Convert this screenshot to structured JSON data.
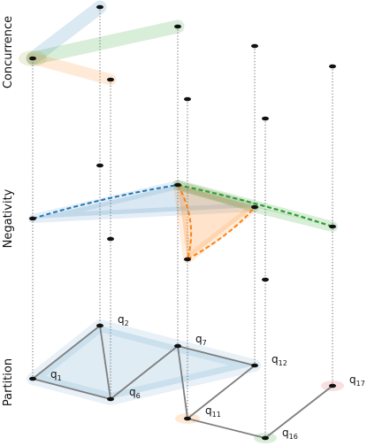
{
  "layers": {
    "concurrence": "Concurrence",
    "negativity": "Negativity",
    "partition": "Partition"
  },
  "qubits": [
    {
      "id": "q1",
      "base": "q",
      "sub": "1"
    },
    {
      "id": "q2",
      "base": "q",
      "sub": "2"
    },
    {
      "id": "q6",
      "base": "q",
      "sub": "6"
    },
    {
      "id": "q7",
      "base": "q",
      "sub": "7"
    },
    {
      "id": "q11",
      "base": "q",
      "sub": "11"
    },
    {
      "id": "q12",
      "base": "q",
      "sub": "12"
    },
    {
      "id": "q16",
      "base": "q",
      "sub": "16"
    },
    {
      "id": "q17",
      "base": "q",
      "sub": "17"
    }
  ],
  "colors": {
    "blue": "#1f77b4",
    "orange": "#ff7f0e",
    "green": "#2ca02c",
    "red": "#d62728",
    "partition_edge": "#7f7f7f",
    "node": "#111111"
  }
}
